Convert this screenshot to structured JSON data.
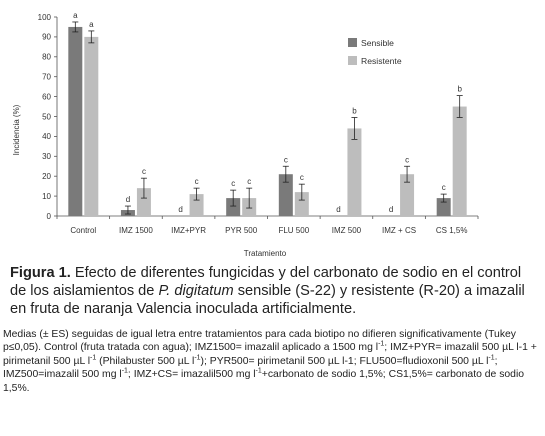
{
  "chart_data": {
    "type": "bar",
    "ylabel": "Incidencia (%)",
    "xlabel": "Tratamiento",
    "ylim": [
      0,
      100
    ],
    "yticks": [
      0,
      10,
      20,
      30,
      40,
      50,
      60,
      70,
      80,
      90,
      100
    ],
    "categories": [
      "Control",
      "IMZ 1500",
      "IMZ+PYR",
      "PYR 500",
      "FLU 500",
      "IMZ 500",
      "IMZ + CS",
      "CS 1,5%"
    ],
    "series": [
      {
        "name": "Sensible",
        "color": "#7a7a7a",
        "values": [
          95,
          3,
          0,
          9,
          21,
          0,
          0,
          9
        ],
        "errors": [
          2.5,
          2,
          0,
          4,
          4,
          0,
          0,
          2
        ],
        "letters": [
          "a",
          "d",
          "d",
          "c",
          "c",
          "d",
          "d",
          "c"
        ]
      },
      {
        "name": "Resistente",
        "color": "#bdbdbd",
        "values": [
          90,
          14,
          11,
          9,
          12,
          44,
          21,
          55
        ],
        "errors": [
          3,
          5,
          3,
          5,
          4,
          5.5,
          4,
          5.5
        ],
        "letters": [
          "a",
          "c",
          "c",
          "c",
          "c",
          "b",
          "c",
          "b"
        ]
      }
    ],
    "legend_position": "top-right",
    "grid": false
  },
  "caption": {
    "label": "Figura 1.",
    "t1": " Efecto de diferentes fungicidas y del carbonato de sodio en el control de los aislamientos de ",
    "species": "P. digitatum",
    "t2": " sensible (S-22) y resistente (R-20) a imazalil en fruta de naranja Valencia inoculada artificialmente."
  },
  "notes": {
    "n1": "Medias (± ES) seguidas de igual letra entre tratamientos para cada biotipo no difieren significativamente (Tukey p≤0,05). Control (fruta tratada con agua); IMZ1500= imazalil aplicado a 1500 mg l",
    "n2": "; IMZ+PYR= imazalil 500 µL l-1 + pirimetanil 500 µL l",
    "n3": " (Philabuster 500 µL l",
    "n4": "); PYR500= pirimetanil 500 µL l-1; FLU500=fludioxonil 500 µL l",
    "n5": "; IMZ500=imazalil 500 mg l",
    "n6": "; IMZ+CS= imazalil500 mg l",
    "n7": "+carbonato de sodio 1,5%; CS1,5%= carbonato de sodio 1,5%.",
    "sup": "-1"
  }
}
